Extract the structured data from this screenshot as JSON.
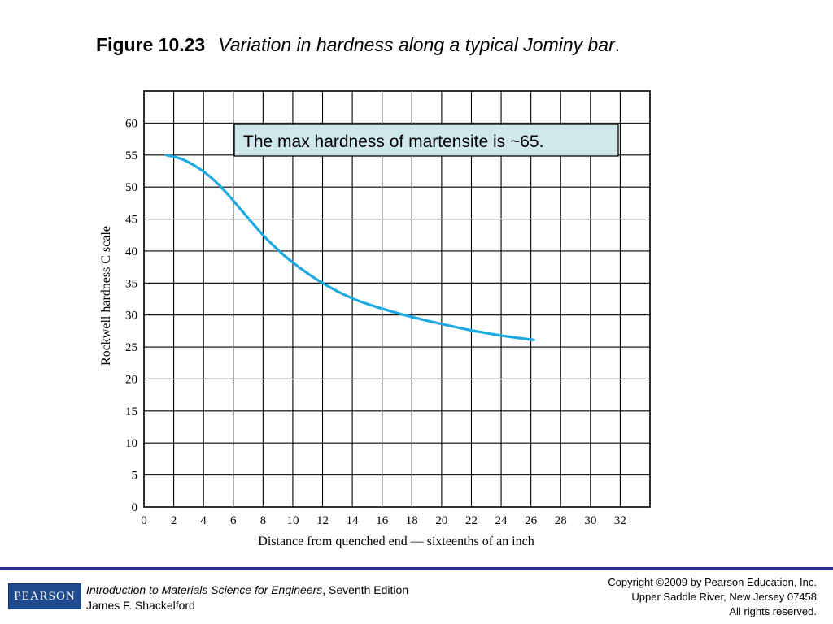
{
  "header": {
    "figure_number": "Figure 10.23",
    "caption": "Variation in hardness along a typical Jominy bar",
    "caption_period": "."
  },
  "chart_data": {
    "type": "line",
    "title": "",
    "xlabel": "Distance from quenched end — sixteenths of an inch",
    "ylabel": "Rockwell hardness C scale",
    "xlim": [
      0,
      34
    ],
    "ylim": [
      0,
      65
    ],
    "grid": true,
    "x_ticks": [
      0,
      2,
      4,
      6,
      8,
      10,
      12,
      14,
      16,
      18,
      20,
      22,
      24,
      26,
      28,
      30,
      32
    ],
    "y_ticks": [
      0,
      5,
      10,
      15,
      20,
      25,
      30,
      35,
      40,
      45,
      50,
      55,
      60
    ],
    "series": [
      {
        "color": "#1ba9e0",
        "x": [
          1.5,
          2.5,
          3.5,
          4.5,
          5.5,
          6.5,
          7.5,
          8.5,
          10,
          12,
          14,
          16,
          18,
          20,
          22,
          24,
          26.2
        ],
        "y": [
          55,
          54.4,
          53.2,
          51.5,
          49.2,
          46.5,
          43.8,
          41.3,
          38.2,
          35,
          32.6,
          31,
          29.7,
          28.6,
          27.6,
          26.8,
          26.1
        ]
      }
    ],
    "annotation": {
      "text": "The max hardness of martensite is ~65.",
      "background": "#cfe8ec"
    }
  },
  "footer": {
    "logo_text": "PEARSON",
    "book_title": "Introduction to Materials Science for Engineers",
    "book_edition": ", Seventh Edition",
    "author": "James F. Shackelford",
    "copyright_line1": "Copyright ©2009 by Pearson Education, Inc.",
    "copyright_line2": "Upper Saddle River, New Jersey 07458",
    "copyright_line3": "All rights reserved.",
    "rule_color": "#2b2f8f"
  }
}
